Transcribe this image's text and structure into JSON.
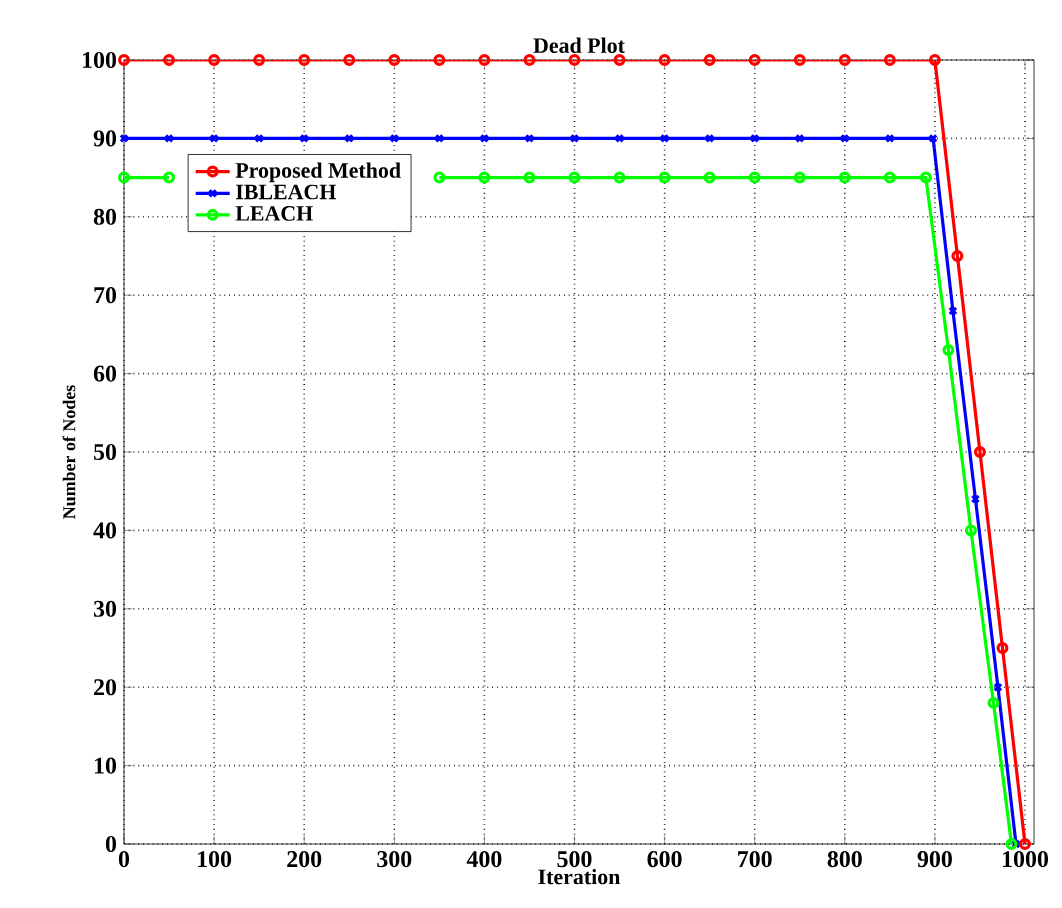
{
  "chart_data": {
    "type": "line",
    "title": "Dead Plot",
    "xlabel": "Iteration",
    "ylabel": "Number of Nodes",
    "xlim": [
      0,
      1010
    ],
    "ylim": [
      0,
      100
    ],
    "xticks": [
      0,
      100,
      200,
      300,
      400,
      500,
      600,
      700,
      800,
      900,
      1000
    ],
    "yticks": [
      0,
      10,
      20,
      30,
      40,
      50,
      60,
      70,
      80,
      90,
      100
    ],
    "grid": true,
    "legend": "top left",
    "series": [
      {
        "name": "Proposed Method",
        "color": "#ff0000",
        "marker": "circle",
        "x": [
          0,
          50,
          100,
          150,
          200,
          250,
          300,
          350,
          400,
          450,
          500,
          550,
          600,
          650,
          700,
          750,
          800,
          850,
          900,
          925,
          950,
          975,
          1000
        ],
        "values": [
          100,
          100,
          100,
          100,
          100,
          100,
          100,
          100,
          100,
          100,
          100,
          100,
          100,
          100,
          100,
          100,
          100,
          100,
          100,
          75,
          50,
          25,
          0
        ]
      },
      {
        "name": "IBLEACH",
        "color": "#0000ff",
        "marker": "cross",
        "x": [
          0,
          50,
          100,
          150,
          200,
          250,
          300,
          350,
          400,
          450,
          500,
          550,
          600,
          650,
          700,
          750,
          800,
          850,
          898,
          920,
          945,
          970,
          990
        ],
        "values": [
          90,
          90,
          90,
          90,
          90,
          90,
          90,
          90,
          90,
          90,
          90,
          90,
          90,
          90,
          90,
          90,
          90,
          90,
          90,
          68,
          44,
          20,
          0
        ]
      },
      {
        "name": "LEACH",
        "color": "#00ff00",
        "marker": "circle",
        "x": [
          0,
          50,
          100,
          150,
          200,
          250,
          300,
          350,
          400,
          450,
          500,
          550,
          600,
          650,
          700,
          750,
          800,
          850,
          890,
          915,
          940,
          965,
          985
        ],
        "values": [
          85,
          85,
          null,
          null,
          null,
          null,
          null,
          85,
          85,
          85,
          85,
          85,
          85,
          85,
          85,
          85,
          85,
          85,
          85,
          63,
          40,
          18,
          0
        ]
      }
    ]
  }
}
